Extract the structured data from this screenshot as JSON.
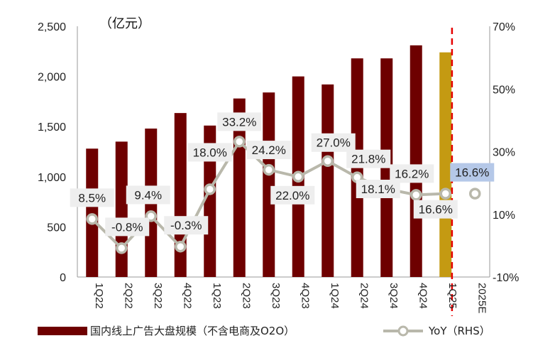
{
  "chart_data": {
    "type": "bar",
    "unit_label": "（亿元）",
    "categories": [
      "1Q22",
      "2Q22",
      "3Q22",
      "4Q22",
      "1Q23",
      "2Q23",
      "3Q23",
      "4Q23",
      "1Q24",
      "2Q24",
      "3Q24",
      "4Q24",
      "1Q25",
      "2025E"
    ],
    "left_axis": {
      "ylim": [
        0,
        2500
      ],
      "ticks": [
        "0",
        "500",
        "1,000",
        "1,500",
        "2,000",
        "2,500"
      ]
    },
    "right_axis": {
      "ylim": [
        -10,
        70
      ],
      "ticks": [
        "-10%",
        "10%",
        "30%",
        "50%",
        "70%"
      ]
    },
    "series": [
      {
        "name": "国内线上广告大盘规模（不含电商及O2O）",
        "kind": "bar",
        "axis": "left",
        "values": [
          1280,
          1350,
          1480,
          1635,
          1510,
          1780,
          1840,
          2000,
          1920,
          2180,
          2180,
          2310,
          2240,
          null
        ],
        "colors": [
          "#6e0000",
          "#6e0000",
          "#6e0000",
          "#6e0000",
          "#6e0000",
          "#6e0000",
          "#6e0000",
          "#6e0000",
          "#6e0000",
          "#6e0000",
          "#6e0000",
          "#6e0000",
          "#c49a12",
          null
        ]
      },
      {
        "name": "YoY（RHS）",
        "kind": "line",
        "axis": "right",
        "values": [
          8.5,
          -0.8,
          9.4,
          -0.3,
          18.0,
          33.2,
          24.2,
          22.0,
          27.0,
          21.8,
          18.1,
          16.2,
          16.6,
          16.6
        ],
        "labels": [
          "8.5%",
          "-0.8%",
          "9.4%",
          "-0.3%",
          "18.0%",
          "33.2%",
          "24.2%",
          "22.0%",
          "27.0%",
          "21.8%",
          "18.1%",
          "16.2%",
          "16.6%",
          "16.6%"
        ]
      }
    ],
    "colors": {
      "bar": "#6e0000",
      "bar_highlight": "#c49a12",
      "line": "#b9b8ab",
      "forecast_line": "#e60000",
      "label_box": "#eeeeee",
      "label_box_highlight": "#b5c8e8"
    },
    "forecast_divider": "between 1Q25 and 2025E",
    "grid": false,
    "legend": "bottom"
  }
}
